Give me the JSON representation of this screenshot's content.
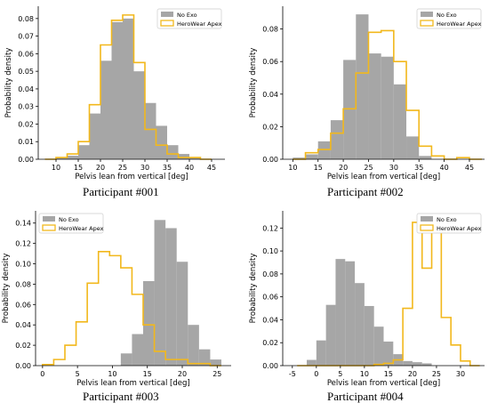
{
  "colors": {
    "no_exo": "#a6a6a6",
    "herowear": "#f2b81c",
    "axis": "#000000"
  },
  "chart_data": [
    {
      "type": "histogram",
      "caption": "Participant #001",
      "xlabel": "Pelvis lean from vertical [deg]",
      "ylabel": "Probability density",
      "xlim": [
        6,
        48
      ],
      "ylim": [
        0,
        0.087
      ],
      "xticks": [
        10,
        15,
        20,
        25,
        30,
        35,
        40,
        45
      ],
      "yticks": [
        0.0,
        0.01,
        0.02,
        0.03,
        0.04,
        0.05,
        0.06,
        0.07,
        0.08
      ],
      "ytick_labels": [
        "0.00",
        "0.01",
        "0.02",
        "0.03",
        "0.04",
        "0.05",
        "0.06",
        "0.07",
        "0.08"
      ],
      "legend_position": "top-right",
      "bins": [
        7.5,
        10,
        12.5,
        15,
        17.5,
        20,
        22.5,
        25,
        27.5,
        30,
        32.5,
        35,
        37.5,
        40,
        42.5,
        45
      ],
      "series": [
        {
          "name": "No Exo",
          "style": "filled",
          "values": [
            0.0,
            0.001,
            0.002,
            0.008,
            0.026,
            0.056,
            0.078,
            0.08,
            0.05,
            0.032,
            0.019,
            0.008,
            0.003,
            0.001,
            0.0
          ]
        },
        {
          "name": "HeroWear Apex",
          "style": "step",
          "values": [
            0.0,
            0.001,
            0.003,
            0.01,
            0.031,
            0.065,
            0.079,
            0.082,
            0.055,
            0.017,
            0.008,
            0.003,
            0.001,
            0.001,
            0.0
          ]
        }
      ]
    },
    {
      "type": "histogram",
      "caption": "Participant #002",
      "xlabel": "Pelvis lean from vertical [deg]",
      "ylabel": "Probability density",
      "xlim": [
        8,
        48
      ],
      "ylim": [
        0,
        0.094
      ],
      "xticks": [
        10,
        15,
        20,
        25,
        30,
        35,
        40,
        45
      ],
      "yticks": [
        0.0,
        0.02,
        0.04,
        0.06,
        0.08
      ],
      "ytick_labels": [
        "0.00",
        "0.02",
        "0.04",
        "0.06",
        "0.08"
      ],
      "legend_position": "top-right",
      "bins": [
        10,
        12.5,
        15,
        17.5,
        20,
        22.5,
        25,
        27.5,
        30,
        32.5,
        35,
        37.5,
        40,
        42.5,
        45,
        47.5
      ],
      "series": [
        {
          "name": "No Exo",
          "style": "filled",
          "values": [
            0.001,
            0.003,
            0.011,
            0.024,
            0.061,
            0.089,
            0.065,
            0.063,
            0.046,
            0.014,
            0.002,
            0.0,
            0.0,
            0.0,
            0.0
          ]
        },
        {
          "name": "HeroWear Apex",
          "style": "step",
          "values": [
            0.0,
            0.004,
            0.006,
            0.016,
            0.031,
            0.053,
            0.078,
            0.079,
            0.06,
            0.03,
            0.008,
            0.002,
            0.0,
            0.001,
            0.0
          ]
        }
      ]
    },
    {
      "type": "histogram",
      "caption": "Participant #003",
      "xlabel": "Pelvis lean from vertical [deg]",
      "ylabel": "Probability density",
      "xlim": [
        -1,
        27
      ],
      "ylim": [
        0,
        0.152
      ],
      "xticks": [
        0,
        5,
        10,
        15,
        20,
        25
      ],
      "yticks": [
        0.0,
        0.02,
        0.04,
        0.06,
        0.08,
        0.1,
        0.12,
        0.14
      ],
      "ytick_labels": [
        "0.00",
        "0.02",
        "0.04",
        "0.06",
        "0.08",
        "0.10",
        "0.12",
        "0.14"
      ],
      "legend_position": "top-left",
      "bins": [
        0,
        1.6,
        3.2,
        4.8,
        6.4,
        8,
        9.6,
        11.2,
        12.8,
        14.4,
        16,
        17.6,
        19.2,
        20.8,
        22.4,
        24,
        25.6
      ],
      "series": [
        {
          "name": "No Exo",
          "style": "filled",
          "values": [
            0.0,
            0.0,
            0.0,
            0.0,
            0.0,
            0.0,
            0.0,
            0.012,
            0.031,
            0.083,
            0.143,
            0.135,
            0.102,
            0.04,
            0.016,
            0.006
          ]
        },
        {
          "name": "HeroWear Apex",
          "style": "step",
          "values": [
            0.001,
            0.006,
            0.02,
            0.043,
            0.081,
            0.112,
            0.108,
            0.096,
            0.07,
            0.04,
            0.014,
            0.006,
            0.006,
            0.002,
            0.002,
            0.0
          ]
        }
      ]
    },
    {
      "type": "histogram",
      "caption": "Participant #004",
      "xlabel": "Pelvis lean from vertical [deg]",
      "ylabel": "Probability density",
      "xlim": [
        -7,
        35
      ],
      "ylim": [
        0,
        0.135
      ],
      "xticks": [
        -5,
        0,
        5,
        10,
        15,
        20,
        25,
        30
      ],
      "yticks": [
        0.0,
        0.02,
        0.04,
        0.06,
        0.08,
        0.1,
        0.12
      ],
      "ytick_labels": [
        "0.00",
        "0.02",
        "0.04",
        "0.06",
        "0.08",
        "0.10",
        "0.12"
      ],
      "legend_position": "top-right",
      "bins": [
        -4,
        -2,
        0,
        2,
        4,
        6,
        8,
        10,
        12,
        14,
        16,
        18,
        20,
        22,
        24,
        26,
        28,
        30,
        32,
        34
      ],
      "series": [
        {
          "name": "No Exo",
          "style": "filled",
          "values": [
            0.0,
            0.005,
            0.022,
            0.053,
            0.093,
            0.091,
            0.072,
            0.052,
            0.034,
            0.021,
            0.01,
            0.004,
            0.003,
            0.002,
            0.0,
            0.0,
            0.0,
            0.0,
            0.0
          ]
        },
        {
          "name": "HeroWear Apex",
          "style": "step",
          "values": [
            0.0,
            0.0,
            0.0,
            0.0,
            0.0,
            0.0,
            0.0,
            0.0,
            0.001,
            0.002,
            0.005,
            0.05,
            0.125,
            0.085,
            0.125,
            0.042,
            0.018,
            0.004,
            0.0
          ]
        }
      ]
    }
  ]
}
